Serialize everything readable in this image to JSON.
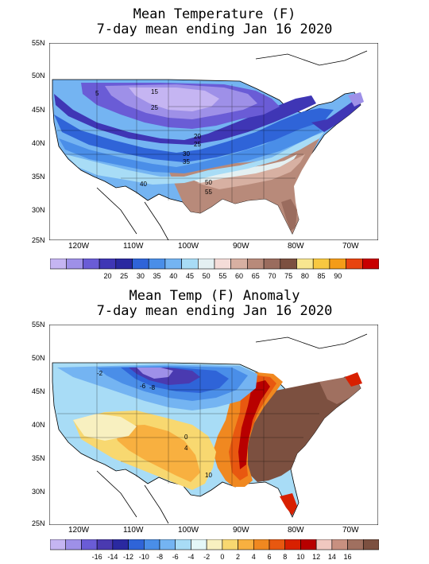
{
  "panel_top": {
    "title_line1": "Mean Temperature (F)",
    "title_line2": "7-day mean ending Jan 16 2020",
    "lat_labels": [
      "55N",
      "50N",
      "45N",
      "40N",
      "35N",
      "30N",
      "25N"
    ],
    "lon_labels": [
      "120W",
      "110W",
      "100W",
      "90W",
      "80W",
      "70W"
    ],
    "contour_labels": [
      "5",
      "15",
      "25",
      "20",
      "25",
      "30",
      "35",
      "40",
      "50",
      "55"
    ],
    "legend": {
      "colors": [
        "#c5b5f2",
        "#9e90e8",
        "#6a5cd6",
        "#3f36b5",
        "#2a29a0",
        "#2f64d8",
        "#4a8ee8",
        "#74b4f2",
        "#a8dcf6",
        "#e4f0f2",
        "#f4dcd8",
        "#d7b0a2",
        "#b88a7a",
        "#9a6c5e",
        "#7c5040",
        "#f8e690",
        "#f8c840",
        "#f49c18",
        "#e84410",
        "#c80000"
      ],
      "labels": [
        "20",
        "25",
        "30",
        "35",
        "40",
        "45",
        "50",
        "55",
        "60",
        "65",
        "70",
        "75",
        "80",
        "85",
        "90"
      ]
    }
  },
  "panel_bottom": {
    "title_line1": "Mean Temp (F) Anomaly",
    "title_line2": "7-day mean ending Jan 16 2020",
    "lat_labels": [
      "55N",
      "50N",
      "45N",
      "40N",
      "35N",
      "30N",
      "25N"
    ],
    "lon_labels": [
      "120W",
      "110W",
      "100W",
      "90W",
      "80W",
      "70W"
    ],
    "contour_labels": [
      "-2",
      "-6",
      "-8",
      "0",
      "4",
      "10"
    ],
    "legend": {
      "colors": [
        "#c5b5f2",
        "#9e90e8",
        "#6a5cd6",
        "#4a3ab0",
        "#2a29a0",
        "#2f64d8",
        "#4a8ee8",
        "#74b4f2",
        "#a8dcf6",
        "#e4f8f8",
        "#f8f0c0",
        "#f8d870",
        "#f8b040",
        "#f08820",
        "#e85810",
        "#d82000",
        "#b80000",
        "#f0c8c0",
        "#c89080",
        "#a07060",
        "#7c5040"
      ],
      "labels": [
        "-16",
        "-14",
        "-12",
        "-10",
        "-8",
        "-6",
        "-4",
        "-2",
        "0",
        "2",
        "4",
        "6",
        "8",
        "10",
        "12",
        "14",
        "16"
      ]
    }
  }
}
